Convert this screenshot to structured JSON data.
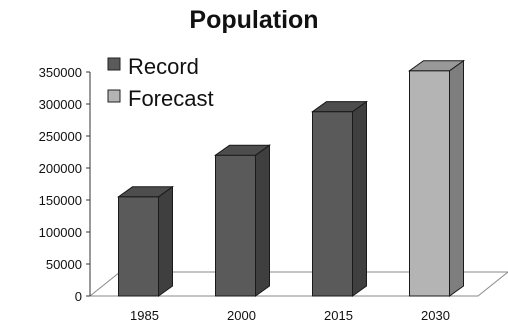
{
  "chart_data": {
    "type": "bar",
    "title": "Population",
    "categories": [
      "1985",
      "2000",
      "2015",
      "2030"
    ],
    "series": [
      {
        "name": "Record",
        "values": [
          155000,
          220000,
          288000,
          null
        ],
        "color": "#5a5a5a"
      },
      {
        "name": "Forecast",
        "values": [
          null,
          null,
          null,
          352000
        ],
        "color": "#b4b4b4"
      }
    ],
    "ylim": [
      0,
      350000
    ],
    "yticks": [
      0,
      50000,
      100000,
      150000,
      200000,
      250000,
      300000,
      350000
    ],
    "xlabel": "",
    "ylabel": "",
    "legend_position": "top-left",
    "grid": false,
    "style": "3d-column"
  }
}
